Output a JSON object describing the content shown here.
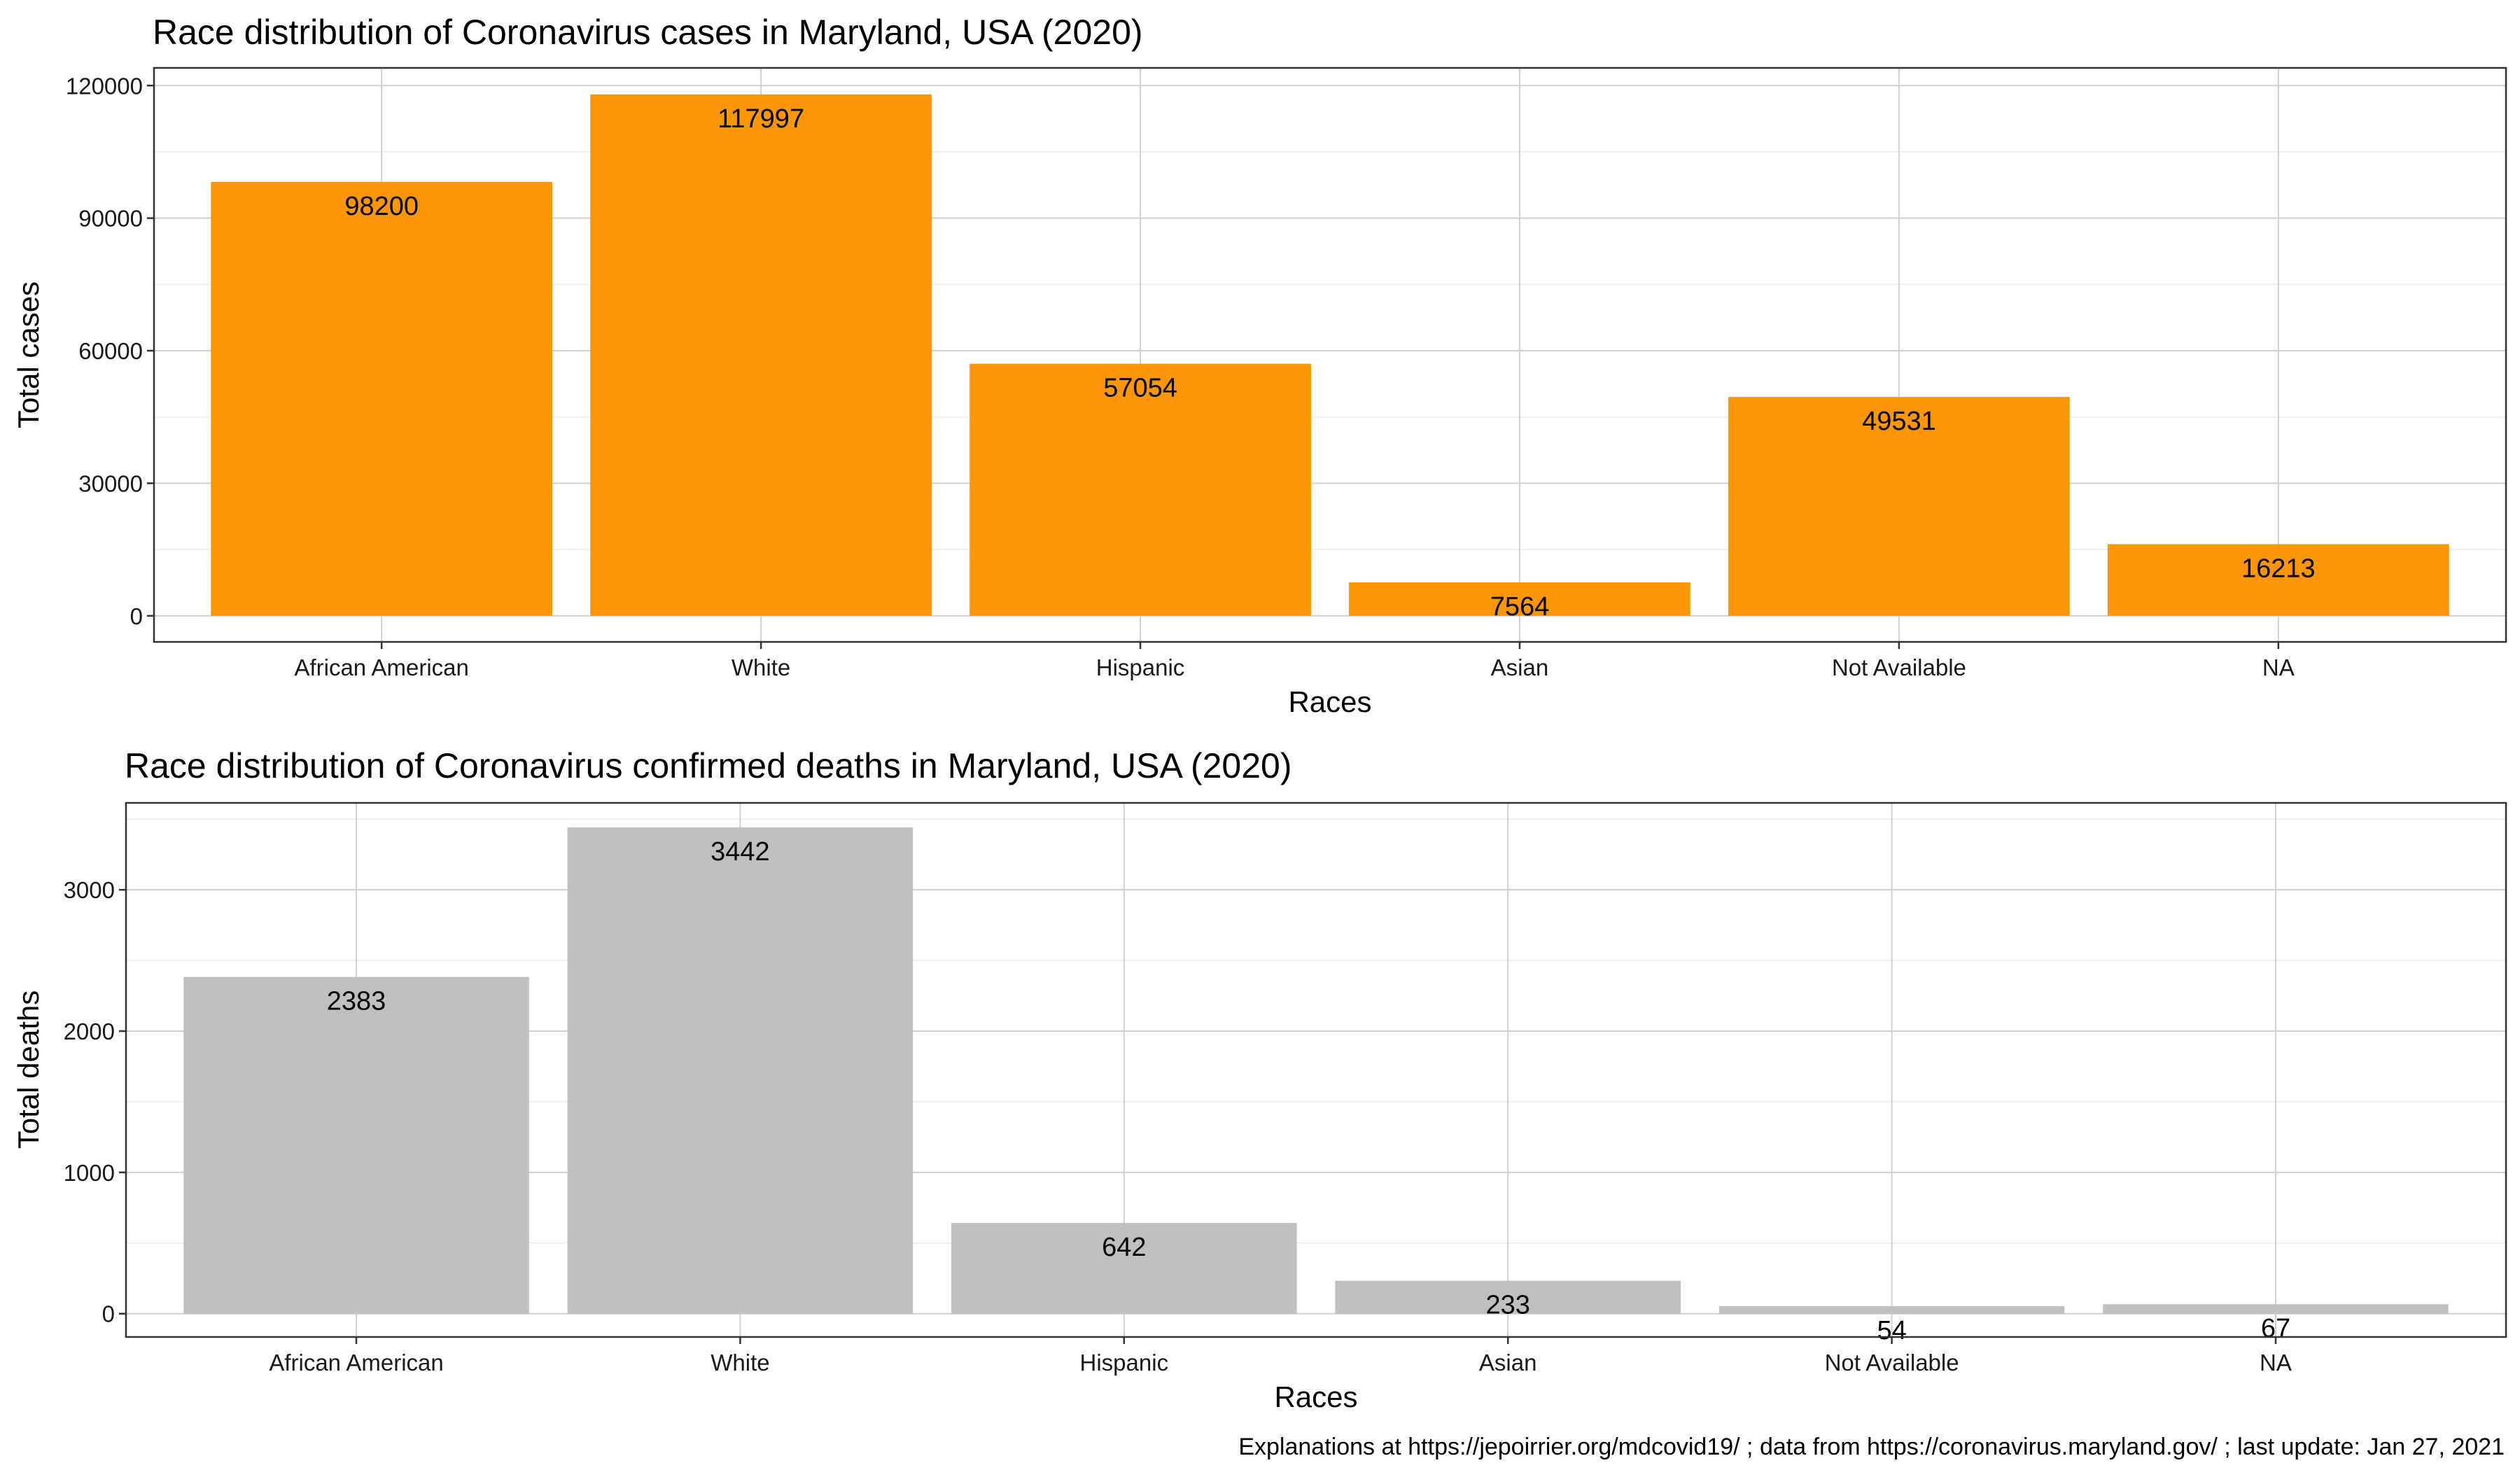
{
  "chart_data": [
    {
      "type": "bar",
      "title": "Race distribution of Coronavirus cases in Maryland, USA (2020)",
      "xlabel": "Races",
      "ylabel": "Total cases",
      "categories": [
        "African American",
        "White",
        "Hispanic",
        "Asian",
        "Not Available",
        "NA"
      ],
      "values": [
        98200,
        117997,
        57054,
        7564,
        49531,
        16213
      ],
      "value_labels": [
        "98200",
        "117997",
        "57054",
        "7564",
        "49531",
        "16213"
      ],
      "yticks": [
        0,
        30000,
        60000,
        90000,
        120000
      ],
      "ytick_labels": [
        "0",
        "30000",
        "60000",
        "90000",
        "120000"
      ],
      "ylim": [
        -5900,
        124000
      ],
      "grid": true,
      "legend": "none",
      "bar_color": "#FB9609"
    },
    {
      "type": "bar",
      "title": "Race distribution of Coronavirus confirmed deaths in Maryland, USA (2020)",
      "xlabel": "Races",
      "ylabel": "Total deaths",
      "categories": [
        "African American",
        "White",
        "Hispanic",
        "Asian",
        "Not Available",
        "NA"
      ],
      "values": [
        2383,
        3442,
        642,
        233,
        54,
        67
      ],
      "value_labels": [
        "2383",
        "3442",
        "642",
        "233",
        "54",
        "67"
      ],
      "yticks": [
        0,
        1000,
        2000,
        3000
      ],
      "ytick_labels": [
        "0",
        "1000",
        "2000",
        "3000"
      ],
      "ylim": [
        -165,
        3615
      ],
      "grid": true,
      "legend": "none",
      "bar_color": "#C0C0C0"
    }
  ],
  "caption": "Explanations at https://jepoirrier.org/mdcovid19/ ; data from https://coronavirus.maryland.gov/ ; last update: Jan 27, 2021"
}
